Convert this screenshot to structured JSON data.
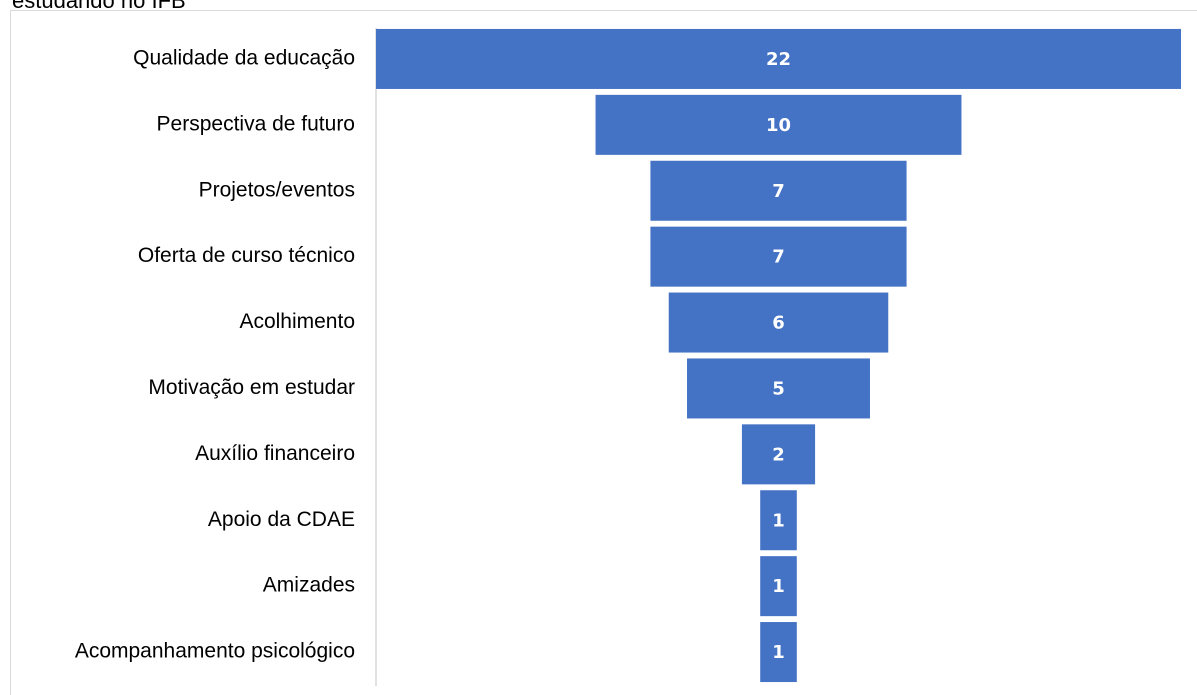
{
  "chart_data": {
    "type": "funnel",
    "title": "estudando no IFB",
    "categories": [
      "Qualidade da educação",
      "Perspectiva de futuro",
      "Projetos/eventos",
      "Oferta de curso técnico",
      "Acolhimento",
      "Motivação em estudar",
      "Auxílio financeiro",
      "Apoio da CDAE",
      "Amizades",
      "Acompanhamento psicológico"
    ],
    "values": [
      22,
      10,
      7,
      7,
      6,
      5,
      2,
      1,
      1,
      1
    ],
    "color": "#4472c4"
  }
}
